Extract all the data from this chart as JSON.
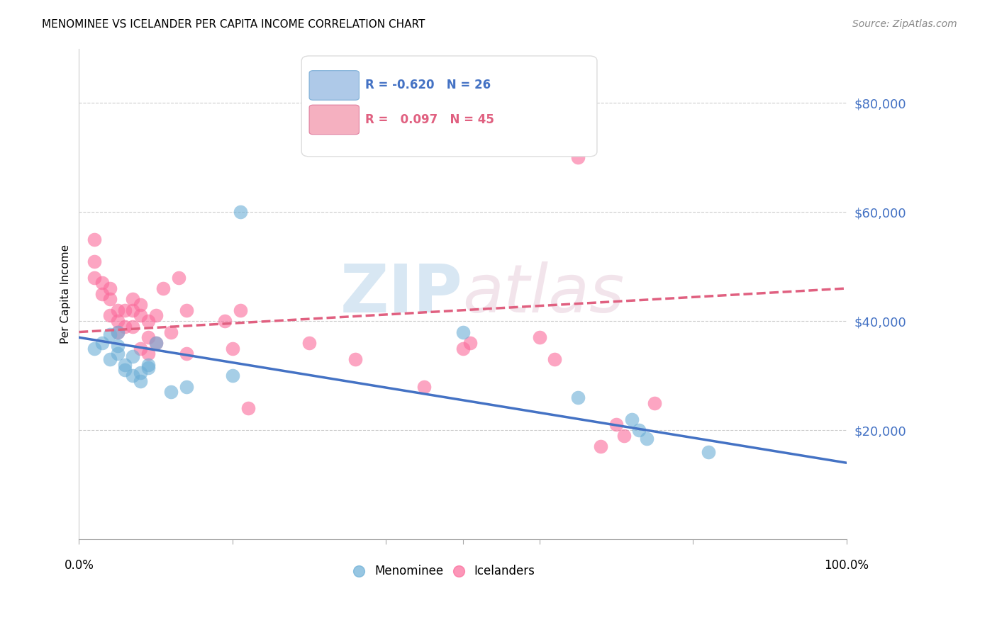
{
  "title": "MENOMINEE VS ICELANDER PER CAPITA INCOME CORRELATION CHART",
  "source": "Source: ZipAtlas.com",
  "ylabel": "Per Capita Income",
  "ylim": [
    0,
    90000
  ],
  "xlim": [
    0.0,
    1.0
  ],
  "menominee_R": -0.62,
  "menominee_N": 26,
  "icelander_R": 0.097,
  "icelander_N": 45,
  "menominee_color": "#6baed6",
  "icelander_color": "#fb6a9a",
  "menominee_line_color": "#4472C4",
  "icelander_line_color": "#e06080",
  "background_color": "#ffffff",
  "grid_color": "#cccccc",
  "menominee_x": [
    0.02,
    0.03,
    0.04,
    0.04,
    0.05,
    0.05,
    0.05,
    0.06,
    0.06,
    0.07,
    0.07,
    0.08,
    0.08,
    0.09,
    0.09,
    0.1,
    0.12,
    0.14,
    0.2,
    0.21,
    0.5,
    0.65,
    0.72,
    0.73,
    0.74,
    0.82
  ],
  "menominee_y": [
    35000,
    36000,
    37500,
    33000,
    38000,
    35500,
    34000,
    32000,
    31000,
    30000,
    33500,
    30500,
    29000,
    32000,
    31500,
    36000,
    27000,
    28000,
    30000,
    60000,
    38000,
    26000,
    22000,
    20000,
    18500,
    16000
  ],
  "icelander_x": [
    0.02,
    0.02,
    0.02,
    0.03,
    0.03,
    0.04,
    0.04,
    0.04,
    0.05,
    0.05,
    0.05,
    0.06,
    0.06,
    0.07,
    0.07,
    0.07,
    0.08,
    0.08,
    0.08,
    0.09,
    0.09,
    0.09,
    0.1,
    0.1,
    0.11,
    0.12,
    0.13,
    0.14,
    0.14,
    0.19,
    0.2,
    0.21,
    0.22,
    0.3,
    0.36,
    0.45,
    0.5,
    0.51,
    0.6,
    0.62,
    0.65,
    0.68,
    0.7,
    0.71,
    0.75
  ],
  "icelander_y": [
    55000,
    51000,
    48000,
    47000,
    45000,
    46000,
    44000,
    41000,
    42000,
    40000,
    38000,
    42000,
    39000,
    44000,
    42000,
    39000,
    43000,
    41000,
    35000,
    40000,
    37000,
    34000,
    41000,
    36000,
    46000,
    38000,
    48000,
    42000,
    34000,
    40000,
    35000,
    42000,
    24000,
    36000,
    33000,
    28000,
    35000,
    36000,
    37000,
    33000,
    70000,
    17000,
    21000,
    19000,
    25000
  ],
  "menominee_line_x": [
    0.0,
    1.0
  ],
  "menominee_line_y": [
    37000,
    14000
  ],
  "icelander_line_x": [
    0.0,
    1.0
  ],
  "icelander_line_y": [
    38000,
    46000
  ],
  "ytick_values": [
    20000,
    40000,
    60000,
    80000
  ],
  "ytick_labels": [
    "$20,000",
    "$40,000",
    "$60,000",
    "$80,000"
  ]
}
